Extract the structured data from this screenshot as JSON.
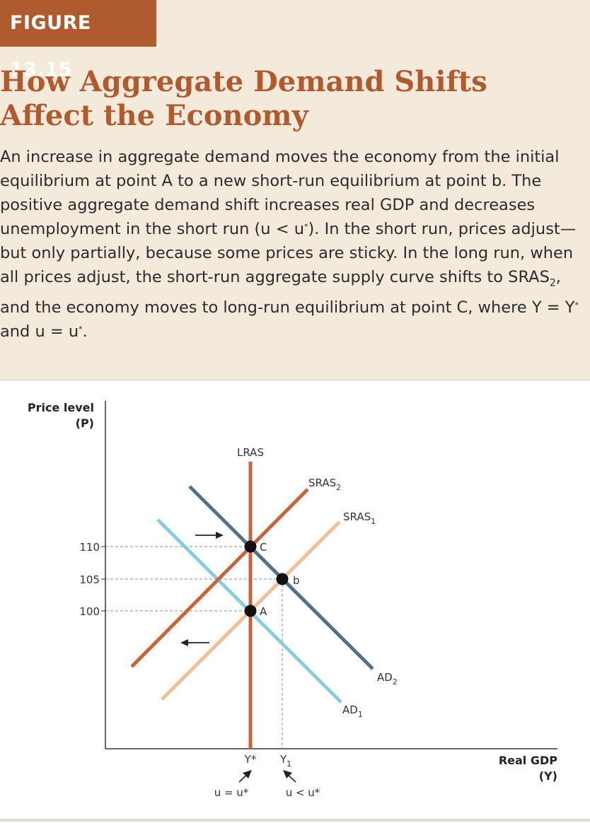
{
  "figure": {
    "label": "FIGURE 13.15",
    "title": "How Aggregate Demand Shifts Affect the Economy",
    "caption": {
      "p1": "An increase in aggregate demand moves the economy from the initial equilibrium at point A to a new short-run equilibrium at point b. The positive aggregate demand shift increases real GDP and decreases unemployment in the short run (u < u",
      "star1": "*",
      "p2": "). In the short run, prices adjust—but only partially, because some prices are sticky. In the long run, when all prices adjust, the short-run aggregate supply curve shifts to SRAS",
      "sub2": "2",
      "p3": ", and the economy moves to long-run equilibrium at point C, where Y = Y",
      "star2": "*",
      "p4": " and u = u",
      "star3": "*",
      "p5": "."
    }
  },
  "chart_data": {
    "type": "line",
    "ylabel": {
      "line1": "Price level",
      "line2": "(P)"
    },
    "xlabel": {
      "line1": "Real GDP",
      "line2": "(Y)"
    },
    "yticks": [
      "110",
      "105",
      "100"
    ],
    "curves": {
      "lras": {
        "label": "LRAS",
        "color": "#c8643a"
      },
      "sras2": {
        "label": "SRAS",
        "sub": "2",
        "color": "#c8643a"
      },
      "sras1": {
        "label": "SRAS",
        "sub": "1",
        "color": "#efbf9c"
      },
      "ad2": {
        "label": "AD",
        "sub": "2",
        "color": "#4f7486"
      },
      "ad1": {
        "label": "AD",
        "sub": "1",
        "color": "#8dcbdb"
      }
    },
    "points": [
      {
        "name": "C",
        "price": 110
      },
      {
        "name": "b",
        "price": 105
      },
      {
        "name": "A",
        "price": 100
      }
    ],
    "x_markers": {
      "ystar": "Y*",
      "y1": "Y",
      "y1_sub": "1"
    },
    "annotations": {
      "ustar": "u = u*",
      "ulow": "u < u*"
    }
  }
}
